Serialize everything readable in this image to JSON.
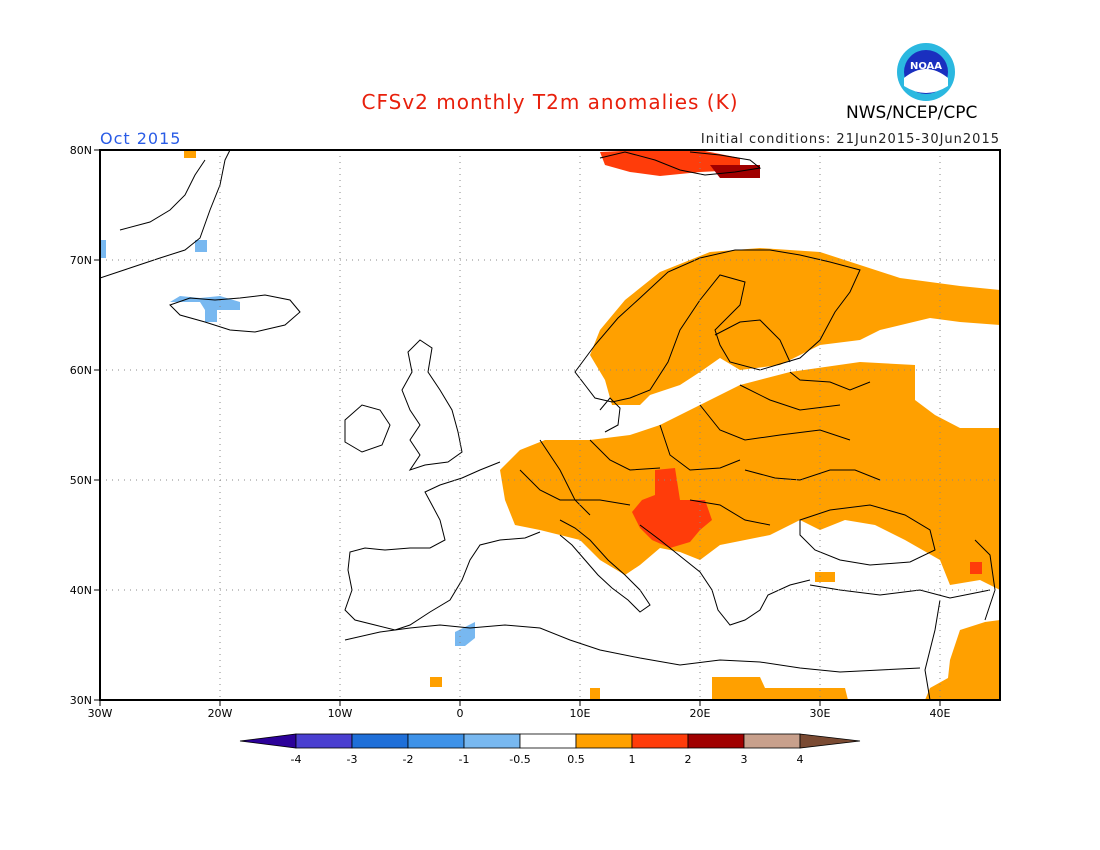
{
  "header": {
    "title": "CFSv2 monthly T2m anomalies (K)",
    "month": "Oct 2015",
    "initial_conditions": "Initial conditions: 21Jun2015-30Jun2015",
    "agency": "NWS/NCEP/CPC",
    "logo_text": "NOAA"
  },
  "axes": {
    "lon_ticks": [
      "30W",
      "20W",
      "10W",
      "0",
      "10E",
      "20E",
      "30E",
      "40E"
    ],
    "lat_ticks": [
      "30N",
      "40N",
      "50N",
      "60N",
      "70N",
      "80N"
    ],
    "lon_range": [
      -30,
      45
    ],
    "lat_range": [
      30,
      80
    ]
  },
  "legend": {
    "labels": [
      "-4",
      "-3",
      "-2",
      "-1",
      "-0.5",
      "0.5",
      "1",
      "2",
      "3",
      "4"
    ],
    "colors": [
      "#2c0199",
      "#4a3fd0",
      "#1f6fd8",
      "#3e92e8",
      "#78b8f0",
      "#ffffff",
      "#ffa000",
      "#ff3c0a",
      "#a00000",
      "#c8a08c",
      "#7a4a32"
    ]
  },
  "colors": {
    "title": "#e8200c",
    "month": "#2a5ce6",
    "warm": "#ffa000",
    "hot": "#ff3c0a",
    "very_hot": "#a00000",
    "cool": "#78b8f0"
  }
}
